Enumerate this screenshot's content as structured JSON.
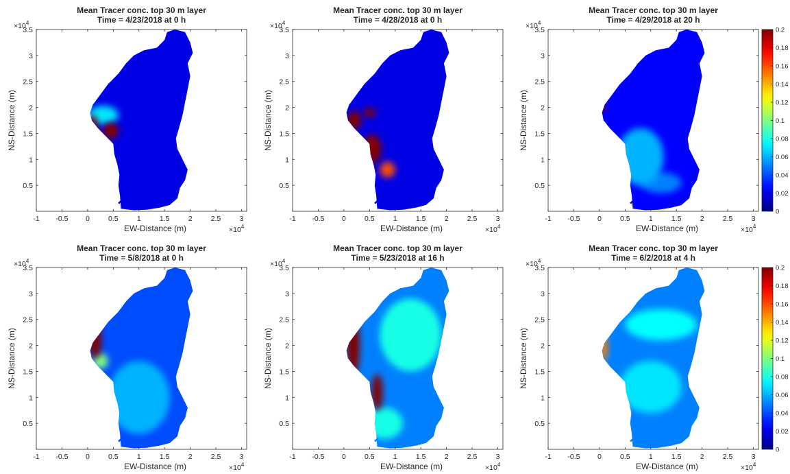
{
  "chart_data": [
    {
      "type": "heatmap",
      "title": [
        "Mean Tracer conc. top 30 m layer",
        "Time = 4/23/2018 at 0 h"
      ],
      "xlabel": "EW-Distance (m)",
      "ylabel": "NS-Distance (m)",
      "x_ticks": [
        "-1",
        "-0.5",
        "0",
        "0.5",
        "1",
        "1.5",
        "2",
        "2.5",
        "3"
      ],
      "y_ticks": [
        "0.5",
        "1",
        "1.5",
        "2",
        "2.5",
        "3",
        "3.5"
      ],
      "x_multiplier": "×10",
      "x_exponent": "4",
      "y_multiplier": "×10",
      "y_exponent": "4",
      "xlim": [
        -10000,
        31000
      ],
      "ylim": [
        0,
        35000
      ],
      "colormap": "jet",
      "background_level": 0.02,
      "hotspots": [
        {
          "x": 1000,
          "y": 16500,
          "rx": 900,
          "ry": 2000,
          "value": 0.2
        },
        {
          "x": 4500,
          "y": 15500,
          "rx": 1500,
          "ry": 1600,
          "value": 0.2
        },
        {
          "x": 3000,
          "y": 18500,
          "rx": 3000,
          "ry": 1800,
          "value": 0.07
        }
      ]
    },
    {
      "type": "heatmap",
      "title": [
        "Mean Tracer conc. top 30 m layer",
        "Time = 4/28/2018 at 0 h"
      ],
      "xlabel": "EW-Distance (m)",
      "ylabel": "NS-Distance (m)",
      "x_ticks": [
        "-1",
        "-0.5",
        "0",
        "0.5",
        "1",
        "1.5",
        "2",
        "2.5",
        "3"
      ],
      "y_ticks": [
        "0.5",
        "1",
        "1.5",
        "2",
        "2.5",
        "3",
        "3.5"
      ],
      "x_multiplier": "×10",
      "x_exponent": "4",
      "y_multiplier": "×10",
      "y_exponent": "4",
      "xlim": [
        -10000,
        31000
      ],
      "ylim": [
        0,
        35000
      ],
      "colormap": "jet",
      "background_level": 0.02,
      "hotspots": [
        {
          "x": 2000,
          "y": 17500,
          "rx": 1400,
          "ry": 1800,
          "value": 0.2
        },
        {
          "x": 5500,
          "y": 12000,
          "rx": 1800,
          "ry": 2800,
          "value": 0.2
        },
        {
          "x": 8500,
          "y": 8000,
          "rx": 1500,
          "ry": 1500,
          "value": 0.16
        },
        {
          "x": 5000,
          "y": 19000,
          "rx": 1200,
          "ry": 900,
          "value": 0.2
        }
      ]
    },
    {
      "type": "heatmap",
      "title": [
        "Mean Tracer conc. top 30 m layer",
        "Time = 4/29/2018 at 20 h"
      ],
      "xlabel": "EW-Distance (m)",
      "ylabel": "NS-Distance (m)",
      "x_ticks": [
        "-1",
        "-0.5",
        "0",
        "0.5",
        "1",
        "1.5",
        "2",
        "2.5",
        "3"
      ],
      "y_ticks": [
        "0.5",
        "1",
        "1.5",
        "2",
        "2.5",
        "3",
        "3.5"
      ],
      "x_multiplier": "×10",
      "x_exponent": "4",
      "y_multiplier": "×10",
      "y_exponent": "4",
      "xlim": [
        -10000,
        31000
      ],
      "ylim": [
        0,
        35000
      ],
      "colormap": "jet",
      "background_level": 0.025,
      "hotspots": [
        {
          "x": 500,
          "y": 20000,
          "rx": 700,
          "ry": 800,
          "value": 0.2
        },
        {
          "x": 8000,
          "y": 10500,
          "rx": 4500,
          "ry": 5500,
          "value": 0.06
        },
        {
          "x": 12000,
          "y": 5500,
          "rx": 4000,
          "ry": 2000,
          "value": 0.05
        }
      ]
    },
    {
      "type": "heatmap",
      "title": [
        "Mean Tracer conc. top 30 m layer",
        "Time = 5/8/2018 at 0 h"
      ],
      "xlabel": "EW-Distance (m)",
      "ylabel": "NS-Distance (m)",
      "x_ticks": [
        "-1",
        "-0.5",
        "0",
        "0.5",
        "1",
        "1.5",
        "2",
        "2.5",
        "3"
      ],
      "y_ticks": [
        "0.5",
        "1",
        "1.5",
        "2",
        "2.5",
        "3",
        "3.5"
      ],
      "x_multiplier": "×10",
      "x_exponent": "4",
      "y_multiplier": "×10",
      "y_exponent": "4",
      "xlim": [
        -10000,
        31000
      ],
      "ylim": [
        0,
        35000
      ],
      "colormap": "jet",
      "background_level": 0.04,
      "hotspots": [
        {
          "x": 1500,
          "y": 21000,
          "rx": 1200,
          "ry": 3500,
          "value": 0.2
        },
        {
          "x": 10000,
          "y": 10000,
          "rx": 6000,
          "ry": 7000,
          "value": 0.06
        },
        {
          "x": 2500,
          "y": 17000,
          "rx": 1500,
          "ry": 1500,
          "value": 0.1
        }
      ]
    },
    {
      "type": "heatmap",
      "title": [
        "Mean Tracer conc. top 30 m layer",
        "Time = 5/23/2018 at 16 h"
      ],
      "xlabel": "EW-Distance (m)",
      "ylabel": "NS-Distance (m)",
      "x_ticks": [
        "-1",
        "-0.5",
        "0",
        "0.5",
        "1",
        "1.5",
        "2",
        "2.5",
        "3"
      ],
      "y_ticks": [
        "0.5",
        "1",
        "1.5",
        "2",
        "2.5",
        "3",
        "3.5"
      ],
      "x_multiplier": "×10",
      "x_exponent": "4",
      "y_multiplier": "×10",
      "y_exponent": "4",
      "xlim": [
        -10000,
        31000
      ],
      "ylim": [
        0,
        35000
      ],
      "colormap": "jet",
      "background_level": 0.05,
      "hotspots": [
        {
          "x": 1800,
          "y": 20000,
          "rx": 1300,
          "ry": 6000,
          "value": 0.2
        },
        {
          "x": 6500,
          "y": 11000,
          "rx": 1100,
          "ry": 3500,
          "value": 0.2
        },
        {
          "x": 13000,
          "y": 22000,
          "rx": 6000,
          "ry": 7000,
          "value": 0.08
        },
        {
          "x": 8000,
          "y": 5000,
          "rx": 3500,
          "ry": 3000,
          "value": 0.08
        }
      ]
    },
    {
      "type": "heatmap",
      "title": [
        "Mean Tracer conc. top 30 m layer",
        "Time = 6/2/2018 at 4 h"
      ],
      "xlabel": "EW-Distance (m)",
      "ylabel": "NS-Distance (m)",
      "x_ticks": [
        "-1",
        "-0.5",
        "0",
        "0.5",
        "1",
        "1.5",
        "2",
        "2.5",
        "3"
      ],
      "y_ticks": [
        "0.5",
        "1",
        "1.5",
        "2",
        "2.5",
        "3",
        "3.5"
      ],
      "x_multiplier": "×10",
      "x_exponent": "4",
      "y_multiplier": "×10",
      "y_exponent": "4",
      "xlim": [
        -10000,
        31000
      ],
      "ylim": [
        0,
        35000
      ],
      "colormap": "jet",
      "background_level": 0.05,
      "hotspots": [
        {
          "x": 800,
          "y": 19500,
          "rx": 800,
          "ry": 2500,
          "value": 0.15
        },
        {
          "x": 12000,
          "y": 24000,
          "rx": 7000,
          "ry": 3000,
          "value": 0.075
        },
        {
          "x": 10000,
          "y": 12000,
          "rx": 6000,
          "ry": 5000,
          "value": 0.07
        }
      ]
    }
  ],
  "colorbars": [
    {
      "ticks": [
        "0",
        "0.02",
        "0.04",
        "0.06",
        "0.08",
        "0.1",
        "0.12",
        "0.14",
        "0.16",
        "0.18",
        "0.2"
      ],
      "clim": [
        0,
        0.2
      ]
    },
    {
      "ticks": [
        "0",
        "0.02",
        "0.04",
        "0.06",
        "0.08",
        "0.1",
        "0.12",
        "0.14",
        "0.16",
        "0.18",
        "0.2"
      ],
      "clim": [
        0,
        0.2
      ]
    }
  ],
  "lake_outline": [
    [
      6500,
      500
    ],
    [
      9000,
      200
    ],
    [
      11500,
      300
    ],
    [
      14000,
      700
    ],
    [
      16000,
      1200
    ],
    [
      17500,
      2500
    ],
    [
      18000,
      4500
    ],
    [
      19000,
      6000
    ],
    [
      19500,
      8000
    ],
    [
      18500,
      10000
    ],
    [
      17500,
      12000
    ],
    [
      17200,
      14000
    ],
    [
      17800,
      16000
    ],
    [
      18500,
      18500
    ],
    [
      19000,
      21000
    ],
    [
      19500,
      23500
    ],
    [
      20000,
      26000
    ],
    [
      19500,
      28500
    ],
    [
      20500,
      30500
    ],
    [
      20000,
      32500
    ],
    [
      19000,
      34500
    ],
    [
      17000,
      35000
    ],
    [
      15500,
      34500
    ],
    [
      15000,
      33000
    ],
    [
      13500,
      31500
    ],
    [
      11000,
      31000
    ],
    [
      9000,
      30000
    ],
    [
      7500,
      28500
    ],
    [
      6000,
      26500
    ],
    [
      4000,
      24500
    ],
    [
      2500,
      22500
    ],
    [
      1000,
      20500
    ],
    [
      500,
      19000
    ],
    [
      800,
      17500
    ],
    [
      2000,
      16000
    ],
    [
      3500,
      14500
    ],
    [
      5000,
      13000
    ],
    [
      5200,
      11000
    ],
    [
      5800,
      9000
    ],
    [
      6200,
      7000
    ],
    [
      6000,
      5000
    ],
    [
      6300,
      3000
    ]
  ],
  "islet_outline": [
    [
      6200,
      1400
    ],
    [
      6600,
      1900
    ],
    [
      6800,
      2300
    ],
    [
      6400,
      2100
    ],
    [
      5900,
      1600
    ]
  ]
}
